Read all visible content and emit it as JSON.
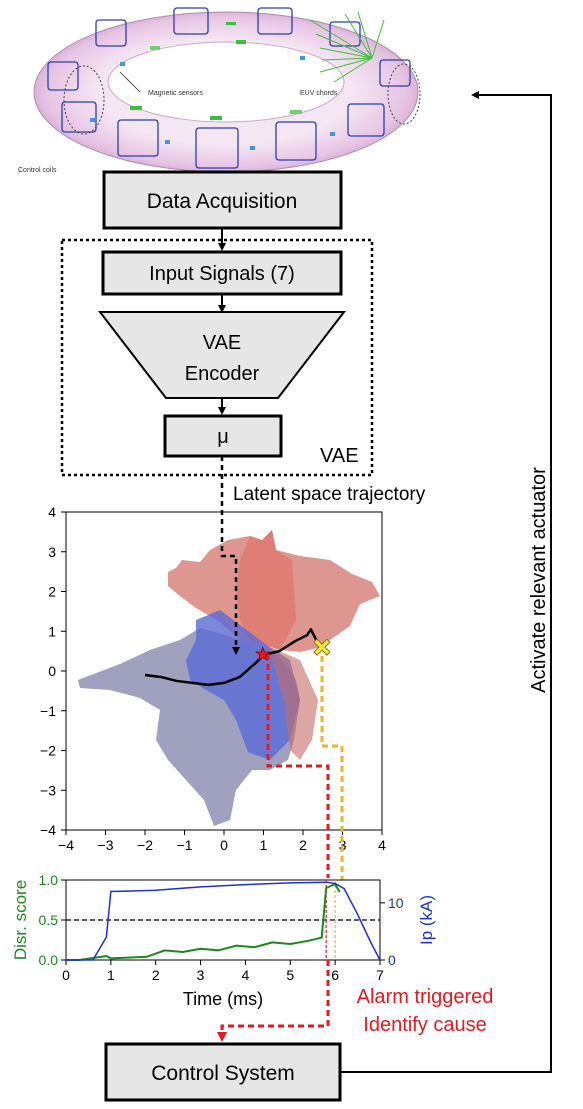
{
  "torus": {
    "magnetic_sensors_label": "Magnetic sensors",
    "euv_chords_label": "EUV chords",
    "control_coils_label": "Control coils"
  },
  "pipeline": {
    "data_acquisition": "Data Acquisition",
    "input_signals": "Input Signals (7)",
    "encoder_line1": "VAE",
    "encoder_line2": "Encoder",
    "mu": "μ",
    "vae_label": "VAE",
    "latent_label": "Latent space trajectory",
    "control_system": "Control System",
    "actuator_label": "Activate relevant actuator",
    "alarm_line1": "Alarm triggered",
    "alarm_line2": "Identify cause"
  },
  "colors": {
    "alarm_red": "#e8191e",
    "orange": "#f2b32a",
    "score_green": "#1a8a1a",
    "ip_blue": "#1d33c9",
    "box_fill": "#e6e6e6"
  },
  "chart_data": [
    {
      "type": "scatter",
      "title": "",
      "xlabel": "",
      "ylabel": "",
      "xlim": [
        -4,
        4
      ],
      "ylim": [
        -4,
        4
      ],
      "xticks": [
        "−4",
        "−3",
        "−2",
        "−1",
        "0",
        "1",
        "2",
        "3",
        "4"
      ],
      "yticks": [
        "4",
        "3",
        "2",
        "1",
        "0",
        "−1",
        "−2",
        "−3",
        "−4"
      ],
      "trajectory": [
        [
          -2.0,
          -0.1
        ],
        [
          -1.6,
          -0.15
        ],
        [
          -1.2,
          -0.25
        ],
        [
          -0.8,
          -0.3
        ],
        [
          -0.4,
          -0.35
        ],
        [
          0.0,
          -0.3
        ],
        [
          0.4,
          -0.15
        ],
        [
          0.8,
          0.2
        ],
        [
          1.0,
          0.4
        ],
        [
          1.4,
          0.5
        ],
        [
          1.8,
          0.75
        ],
        [
          2.1,
          0.9
        ],
        [
          2.2,
          1.05
        ],
        [
          2.35,
          0.75
        ],
        [
          2.5,
          0.6
        ]
      ],
      "alarm_point": [
        0.98,
        0.42
      ],
      "end_point": [
        2.48,
        0.6
      ]
    },
    {
      "type": "line",
      "xlabel": "Time (ms)",
      "ylabel": "Disr. score",
      "y2label": "Ip (kA)",
      "xlim": [
        0,
        7
      ],
      "ylim": [
        0,
        1.0
      ],
      "y2lim": [
        0,
        14
      ],
      "xticks": [
        "0",
        "1",
        "2",
        "3",
        "4",
        "5",
        "6",
        "7"
      ],
      "yticks": [
        "0.0",
        "0.5",
        "1.0"
      ],
      "y2ticks": [
        "0",
        "10"
      ],
      "threshold": 0.5,
      "series": [
        {
          "values": [
            [
              0,
              0
            ],
            [
              0.3,
              0
            ],
            [
              0.9,
              0.05
            ],
            [
              1.0,
              0.02
            ],
            [
              1.8,
              0.04
            ],
            [
              2.2,
              0.12
            ],
            [
              2.6,
              0.1
            ],
            [
              3.0,
              0.14
            ],
            [
              3.4,
              0.12
            ],
            [
              3.8,
              0.18
            ],
            [
              4.2,
              0.16
            ],
            [
              4.6,
              0.22
            ],
            [
              5.0,
              0.2
            ],
            [
              5.4,
              0.24
            ],
            [
              5.7,
              0.28
            ],
            [
              5.8,
              0.9
            ],
            [
              6.0,
              0.95
            ],
            [
              6.1,
              0.85
            ]
          ]
        },
        {
          "values": [
            [
              0,
              0
            ],
            [
              0.6,
              0
            ],
            [
              0.9,
              4
            ],
            [
              1.0,
              12
            ],
            [
              1.1,
              12
            ],
            [
              2.0,
              12.2
            ],
            [
              3.0,
              12.8
            ],
            [
              4.0,
              13.2
            ],
            [
              5.0,
              13.5
            ],
            [
              5.8,
              13.6
            ],
            [
              6.0,
              13.4
            ],
            [
              6.2,
              12.5
            ],
            [
              6.5,
              8
            ],
            [
              6.8,
              3
            ],
            [
              7.0,
              0
            ]
          ]
        }
      ],
      "alarm_time": 5.8,
      "second_time": 6.0
    }
  ]
}
